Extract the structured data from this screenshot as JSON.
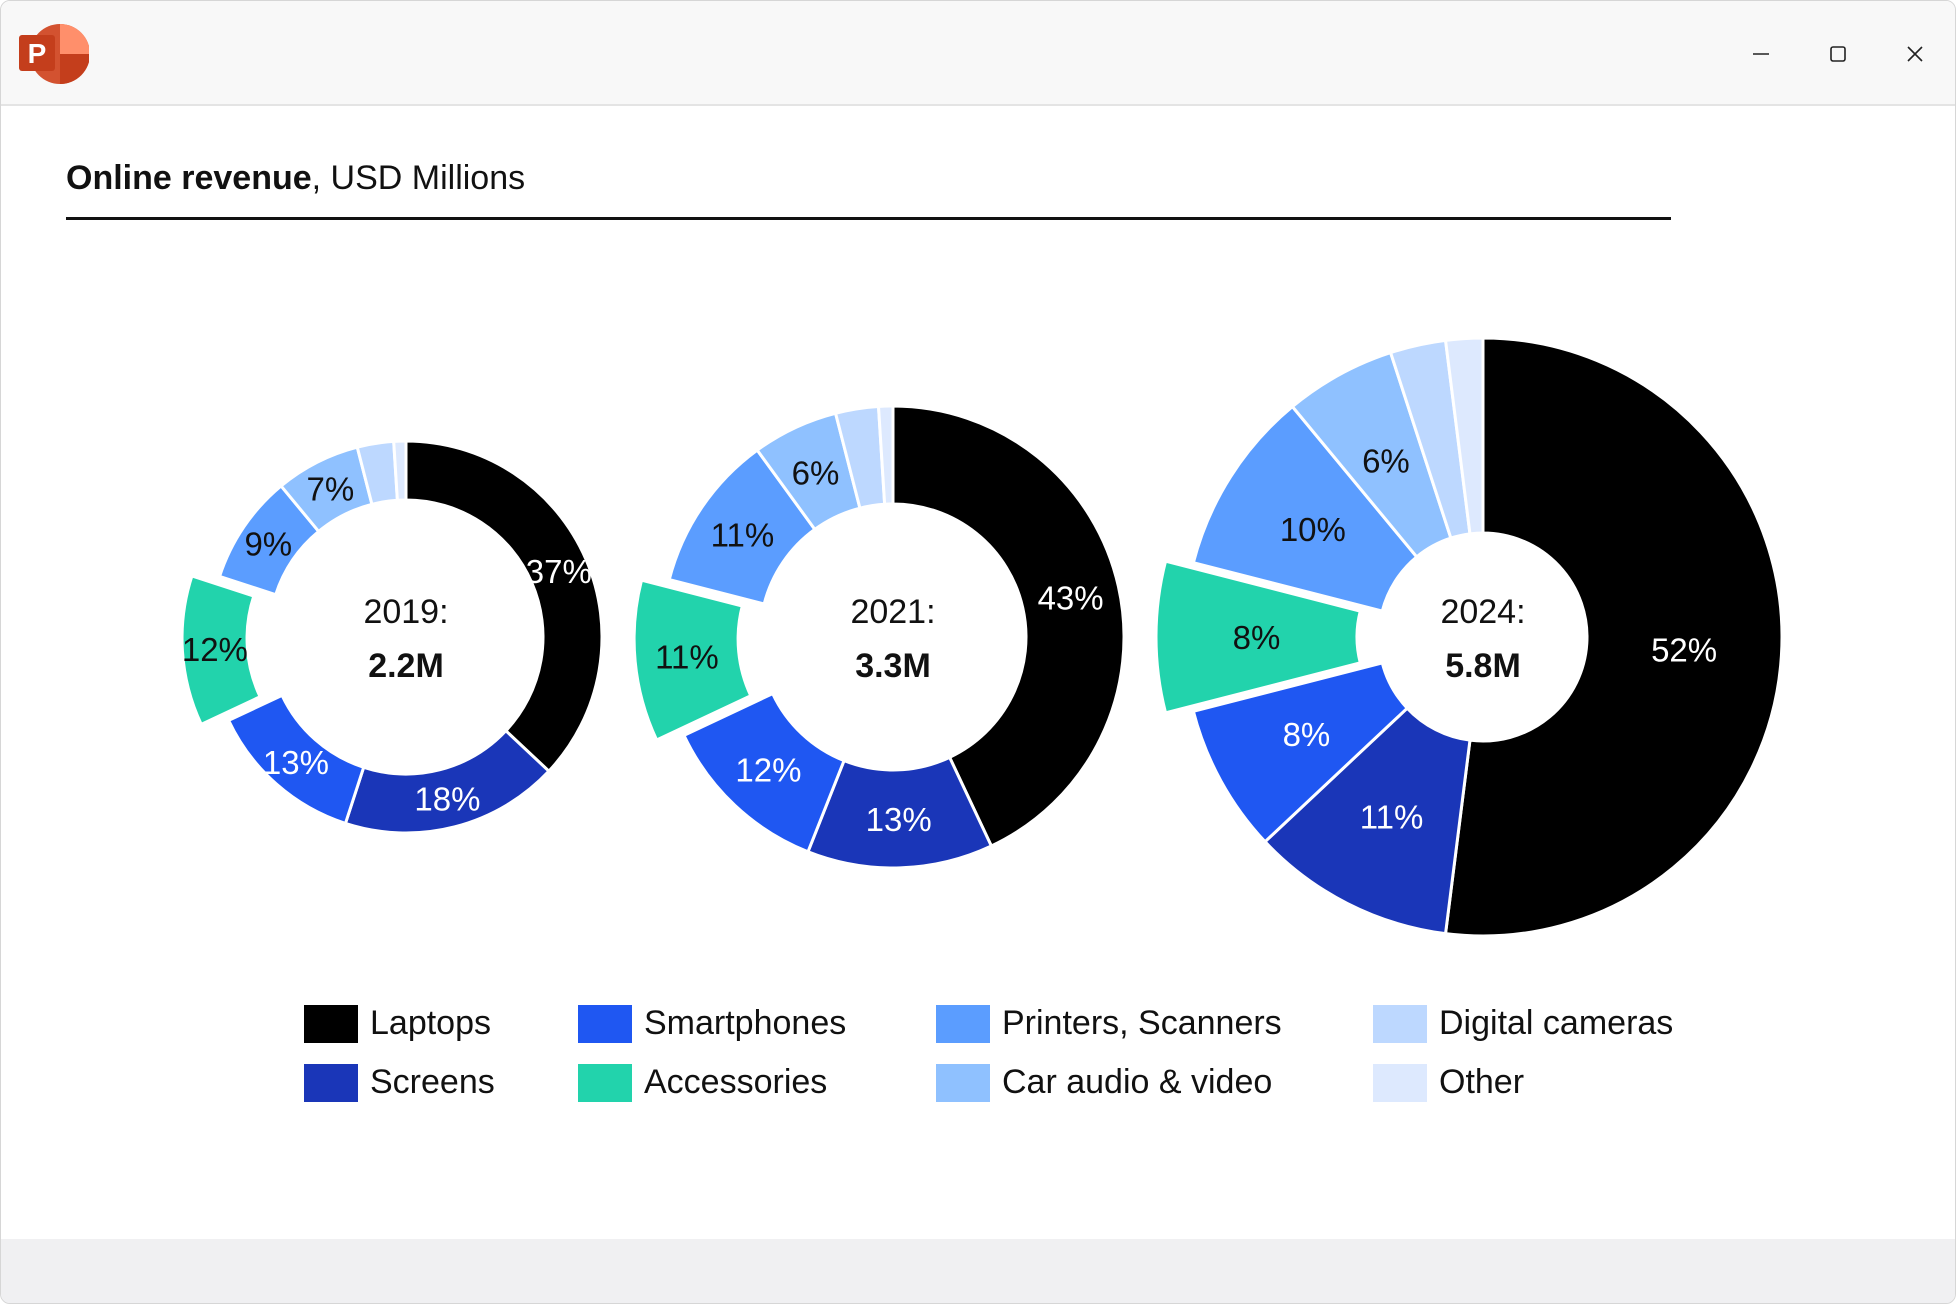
{
  "window": {
    "app_icon": "powerpoint-icon",
    "app_icon_letter": "P",
    "controls": [
      "minimize-icon",
      "maximize-icon",
      "close-icon"
    ]
  },
  "chart_data": {
    "type": "pie",
    "variant": "donut",
    "title": "Online revenue",
    "subtitle": ", USD Millions",
    "categories": [
      "Laptops",
      "Screens",
      "Smartphones",
      "Accessories",
      "Printers, Scanners",
      "Car audio & video",
      "Digital cameras",
      "Other"
    ],
    "colors": [
      "#000000",
      "#1a36b8",
      "#1f57f2",
      "#22d3ac",
      "#5b9dff",
      "#8fc1ff",
      "#bdd8ff",
      "#dde9fe"
    ],
    "label_colors": [
      "#ffffff",
      "#ffffff",
      "#ffffff",
      "#111111",
      "#111111",
      "#111111",
      "#111111",
      "#111111"
    ],
    "exploded_category": "Accessories",
    "charts": [
      {
        "year_label": "2019:",
        "total_label": "2.2M",
        "total": 2.2,
        "values": [
          37,
          18,
          13,
          12,
          9,
          7,
          3,
          1
        ],
        "labels": [
          "37%",
          "18%",
          "13%",
          "12%",
          "9%",
          "7%",
          "",
          ""
        ]
      },
      {
        "year_label": "2021:",
        "total_label": "3.3M",
        "total": 3.3,
        "values": [
          43,
          13,
          12,
          11,
          11,
          6,
          3,
          1
        ],
        "labels": [
          "43%",
          "13%",
          "12%",
          "11%",
          "11%",
          "6%",
          "",
          ""
        ]
      },
      {
        "year_label": "2024:",
        "total_label": "5.8M",
        "total": 5.8,
        "values": [
          52,
          11,
          8,
          8,
          10,
          6,
          3,
          2
        ],
        "labels": [
          "52%",
          "11%",
          "8%",
          "8%",
          "10%",
          "6%",
          "",
          ""
        ]
      }
    ],
    "legend": {
      "placement": "bottom",
      "rows": [
        [
          "Laptops",
          "Smartphones",
          "Printers, Scanners",
          "Digital cameras"
        ],
        [
          "Screens",
          "Accessories",
          "Car audio & video",
          "Other"
        ]
      ]
    }
  }
}
